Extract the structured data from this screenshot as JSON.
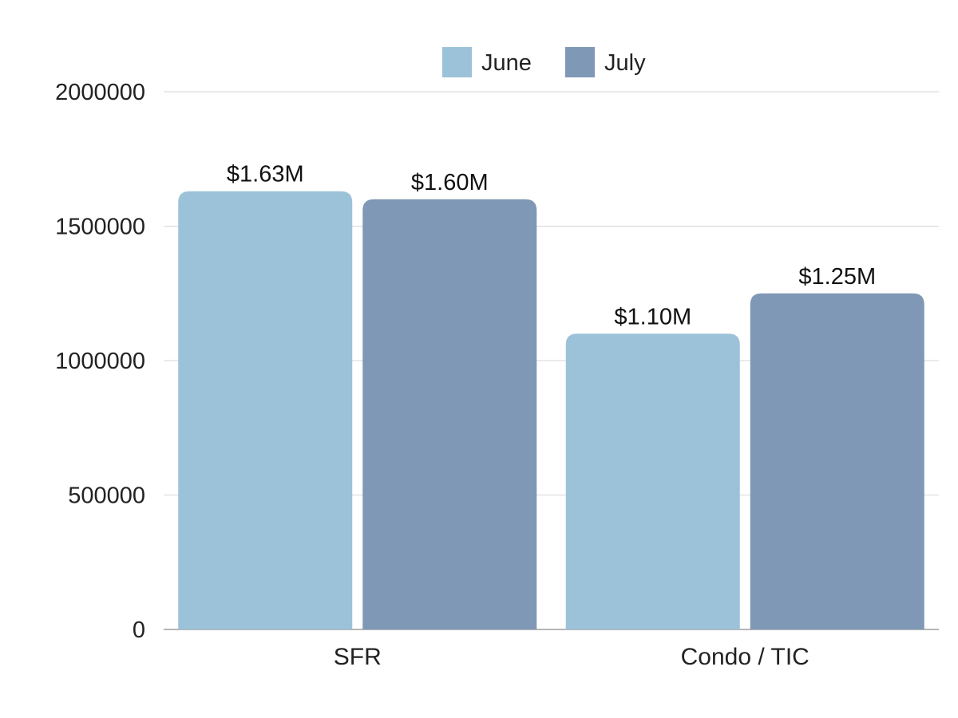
{
  "chart_data": {
    "type": "bar",
    "title": "",
    "xlabel": "",
    "ylabel": "",
    "categories": [
      "SFR",
      "Condo / TIC"
    ],
    "series": [
      {
        "name": "June",
        "color": "#9bc2d8",
        "values": [
          1630000,
          1100000
        ],
        "labels": [
          "$1.63M",
          "$1.10M"
        ]
      },
      {
        "name": "July",
        "color": "#7f98b5",
        "values": [
          1600000,
          1250000
        ],
        "labels": [
          "$1.60M",
          "$1.25M"
        ]
      }
    ],
    "ylim": [
      0,
      2000000
    ],
    "yticks": [
      0,
      500000,
      1000000,
      1500000,
      2000000
    ],
    "ytick_labels": [
      "0",
      "500000",
      "1000000",
      "1500000",
      "2000000"
    ],
    "grid": true,
    "legend_position": "top-center"
  }
}
